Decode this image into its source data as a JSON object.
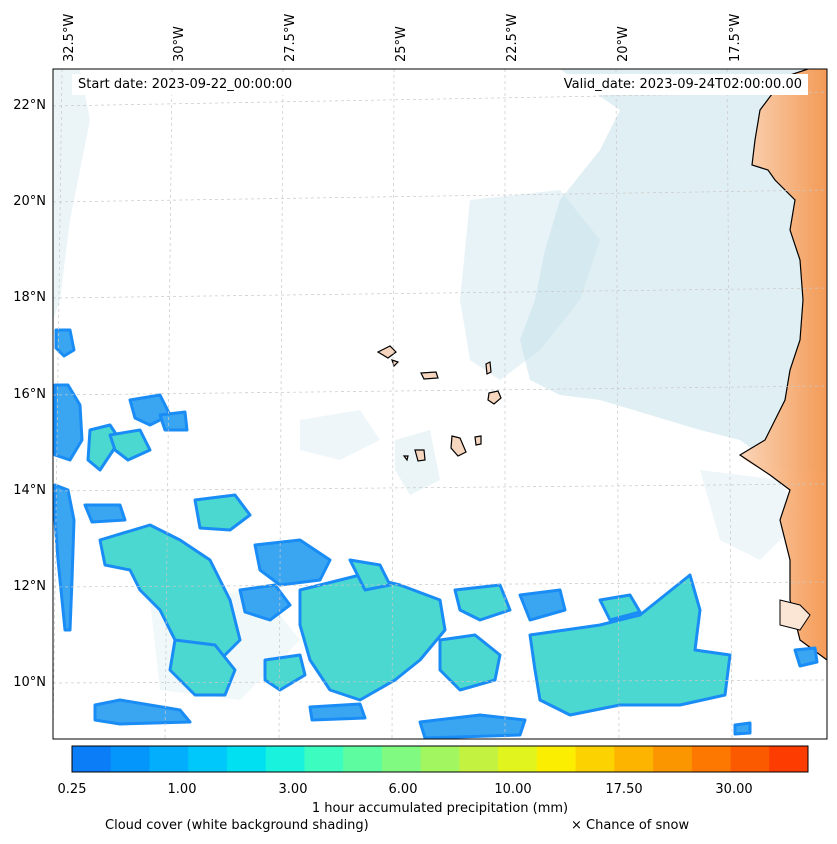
{
  "header": {
    "start_date": "Start date: 2023-09-22_00:00:00",
    "valid_date": "Valid_date: 2023-09-24T02:00:00.00"
  },
  "axes": {
    "longitude_labels": [
      "32.5°W",
      "30°W",
      "27.5°W",
      "25°W",
      "22.5°W",
      "20°W",
      "17.5°W"
    ],
    "latitude_labels": [
      "22°N",
      "20°N",
      "18°N",
      "16°N",
      "14°N",
      "12°N",
      "10°N"
    ]
  },
  "colorbar": {
    "label": "1 hour accumulated precipitation (mm)",
    "tick_labels": [
      "0.25",
      "1.00",
      "3.00",
      "6.00",
      "10.00",
      "17.50",
      "30.00"
    ],
    "colors": [
      "#0a7df7",
      "#0596fb",
      "#03aefc",
      "#00c8fa",
      "#00e0f0",
      "#19f2dc",
      "#3cfcc0",
      "#5efca0",
      "#80fa80",
      "#a2f660",
      "#c4f240",
      "#e2f41e",
      "#fcee00",
      "#fcd200",
      "#fcb400",
      "#fc9600",
      "#fc7800",
      "#fc5a00",
      "#fc3c00"
    ]
  },
  "legend": {
    "cloud_cover": "Cloud cover (white background shading)",
    "snow": "× Chance of snow"
  },
  "theme": {
    "land_color": "#f59a54",
    "cloud_color": "#bfdfe8",
    "precip_edge": "#1a8cf5",
    "precip_core": "#4ad8d0"
  }
}
